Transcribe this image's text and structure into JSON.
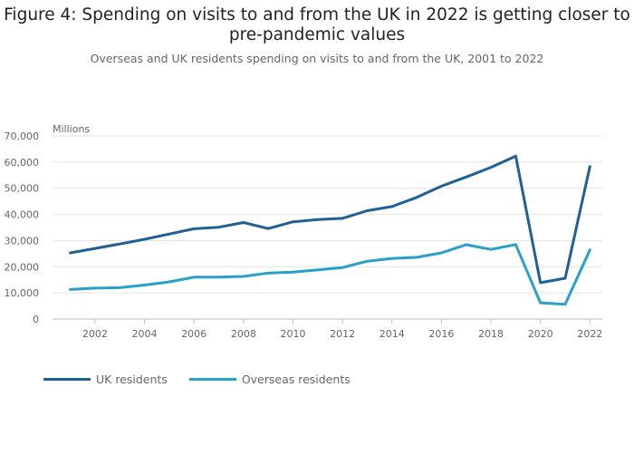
{
  "header": {
    "title": "Figure 4: Spending on visits to and from the UK in 2022 is getting closer to pre-pandemic values",
    "subtitle": "Overseas and UK residents spending on visits to and from the UK, 2001 to 2022"
  },
  "colors": {
    "uk": "#206095",
    "overseas": "#27a0cc",
    "grid": "#e2e2e2"
  },
  "chart_data": {
    "type": "line",
    "title": "Figure 4: Spending on visits to and from the UK in 2022 is getting closer to pre-pandemic values",
    "subtitle": "Overseas and UK residents spending on visits to and from the UK, 2001 to 2022",
    "xlabel": "",
    "ylabel": "Millions",
    "x": [
      2001,
      2002,
      2003,
      2004,
      2005,
      2006,
      2007,
      2008,
      2009,
      2010,
      2011,
      2012,
      2013,
      2014,
      2015,
      2016,
      2017,
      2018,
      2019,
      2020,
      2021,
      2022
    ],
    "ylim": [
      0,
      70000
    ],
    "xlim": [
      2000.1,
      2022.5
    ],
    "yticks": [
      0,
      10000,
      20000,
      30000,
      40000,
      50000,
      60000,
      70000
    ],
    "ytick_labels": [
      "0",
      "10,000",
      "20,000",
      "30,000",
      "40,000",
      "50,000",
      "60,000",
      "70,000"
    ],
    "xticks": [
      2002,
      2004,
      2006,
      2008,
      2010,
      2012,
      2014,
      2016,
      2018,
      2020,
      2022
    ],
    "xtick_labels": [
      "2002",
      "2004",
      "2006",
      "2008",
      "2010",
      "2012",
      "2014",
      "2016",
      "2018",
      "2020",
      "2022"
    ],
    "grid": true,
    "legend_position": "bottom-left",
    "series": [
      {
        "name": "UK residents",
        "color": "#206095",
        "values": [
          25300,
          27000,
          28700,
          30500,
          32500,
          34500,
          35100,
          36900,
          34600,
          37200,
          38000,
          38500,
          41400,
          43000,
          46500,
          50800,
          54300,
          58000,
          62300,
          13900,
          15600,
          58300
        ]
      },
      {
        "name": "Overseas residents",
        "color": "#27a0cc",
        "values": [
          11300,
          11800,
          12000,
          13000,
          14200,
          16000,
          16000,
          16300,
          17600,
          17900,
          18800,
          19700,
          22100,
          23200,
          23600,
          25300,
          28400,
          26600,
          28500,
          6200,
          5600,
          26400
        ]
      }
    ]
  }
}
